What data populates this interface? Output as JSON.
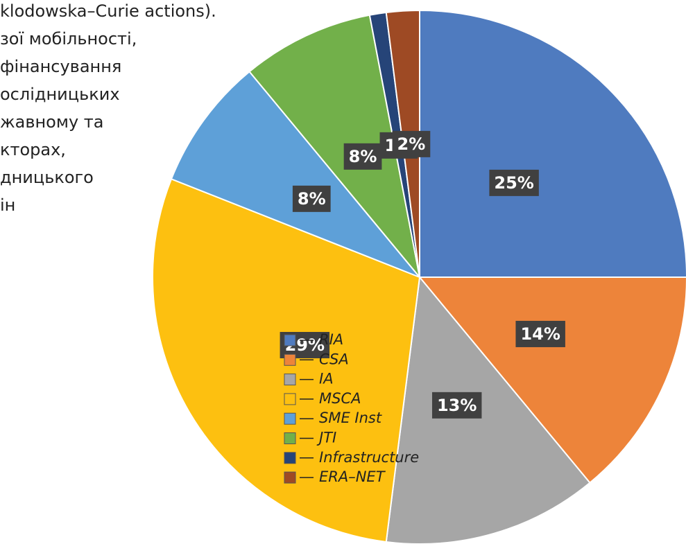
{
  "text_lines": [
    "klodowska–Curie actions).",
    "зої мобільності,",
    "фінансування",
    "ослідницьких",
    "жавному та",
    "кторах,",
    "дницького",
    "ін"
  ],
  "chart_data": {
    "type": "pie",
    "categories": [
      "RIA",
      "CSA",
      "IA",
      "MSCA",
      "SME Inst",
      "JTI",
      "Infrastructure",
      "ERA–NET"
    ],
    "values": [
      25,
      14,
      13,
      29,
      8,
      8,
      1,
      2
    ],
    "value_labels": [
      "25%",
      "14%",
      "13%",
      "29%",
      "8%",
      "8%",
      "1%",
      "2%"
    ],
    "colors": [
      "#4f7bbf",
      "#ed843a",
      "#a6a6a6",
      "#fdc010",
      "#5ea0d8",
      "#72b04a",
      "#264478",
      "#9e4a24"
    ],
    "legend": "left"
  }
}
